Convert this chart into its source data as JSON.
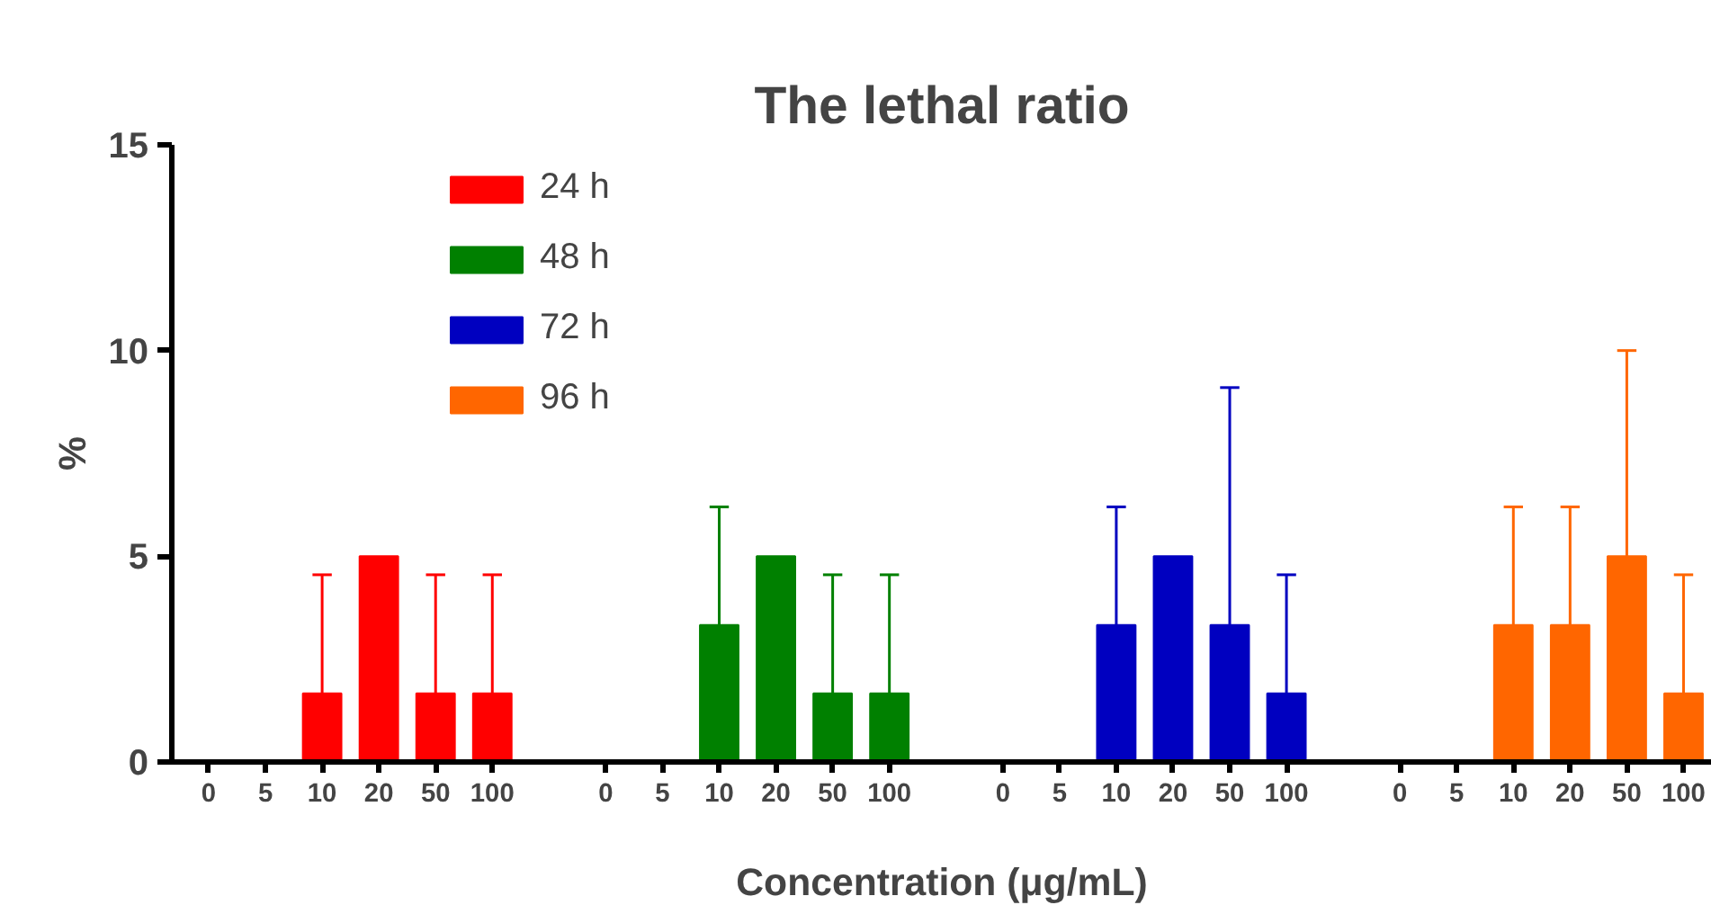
{
  "chart_data": {
    "type": "bar",
    "title": "The lethal ratio",
    "xlabel": "Concentration (μg/mL)",
    "ylabel": "%",
    "categories": [
      "0",
      "5",
      "10",
      "20",
      "50",
      "100",
      null,
      "0",
      "5",
      "10",
      "20",
      "50",
      "100",
      null,
      "0",
      "5",
      "10",
      "20",
      "50",
      "100",
      null,
      "0",
      "5",
      "10",
      "20",
      "50",
      "100"
    ],
    "series": [
      {
        "name": "24 h",
        "color": "#ff0000",
        "values": [
          0,
          0,
          1.67,
          5,
          1.67,
          1.67,
          null,
          null,
          null,
          null,
          null,
          null,
          null,
          null,
          null,
          null,
          null,
          null,
          null,
          null,
          null,
          null,
          null,
          null,
          null,
          null,
          null
        ],
        "errors": [
          null,
          null,
          [
            1.67,
            4.55
          ],
          null,
          [
            1.67,
            4.55
          ],
          [
            1.67,
            4.55
          ],
          null,
          null,
          null,
          null,
          null,
          null,
          null,
          null,
          null,
          null,
          null,
          null,
          null,
          null,
          null,
          null,
          null,
          null,
          null,
          null,
          null
        ]
      },
      {
        "name": "48 h",
        "color": "#008000",
        "values": [
          null,
          null,
          null,
          null,
          null,
          null,
          null,
          0,
          0,
          3.33,
          5,
          1.67,
          1.67,
          null,
          null,
          null,
          null,
          null,
          null,
          null,
          null,
          null,
          null,
          null,
          null,
          null,
          null
        ],
        "errors": [
          null,
          null,
          null,
          null,
          null,
          null,
          null,
          null,
          null,
          [
            3.33,
            6.2
          ],
          null,
          [
            1.67,
            4.55
          ],
          [
            1.67,
            4.55
          ],
          null,
          null,
          null,
          null,
          null,
          null,
          null,
          null,
          null,
          null,
          null,
          null,
          null,
          null
        ]
      },
      {
        "name": "72 h",
        "color": "#0000c0",
        "values": [
          null,
          null,
          null,
          null,
          null,
          null,
          null,
          null,
          null,
          null,
          null,
          null,
          null,
          null,
          0,
          0,
          3.33,
          5,
          3.33,
          1.67,
          null,
          null,
          null,
          null,
          null,
          null,
          null
        ],
        "errors": [
          null,
          null,
          null,
          null,
          null,
          null,
          null,
          null,
          null,
          null,
          null,
          null,
          null,
          null,
          null,
          null,
          [
            3.33,
            6.2
          ],
          null,
          [
            3.33,
            9.1
          ],
          [
            1.67,
            4.55
          ],
          null,
          null,
          null,
          null,
          null,
          null,
          null
        ]
      },
      {
        "name": "96 h",
        "color": "#ff6600",
        "values": [
          null,
          null,
          null,
          null,
          null,
          null,
          null,
          null,
          null,
          null,
          null,
          null,
          null,
          null,
          null,
          null,
          null,
          null,
          null,
          null,
          null,
          0,
          0,
          3.33,
          3.33,
          5,
          1.67
        ],
        "errors": [
          null,
          null,
          null,
          null,
          null,
          null,
          null,
          null,
          null,
          null,
          null,
          null,
          null,
          null,
          null,
          null,
          null,
          null,
          null,
          null,
          null,
          null,
          null,
          [
            3.33,
            6.2
          ],
          [
            3.33,
            6.2
          ],
          [
            5,
            10
          ],
          [
            1.67,
            4.55
          ]
        ]
      }
    ],
    "ylim": [
      0,
      15
    ],
    "yticks": [
      0,
      5,
      10,
      15
    ],
    "grid": false,
    "legend": "top left"
  }
}
